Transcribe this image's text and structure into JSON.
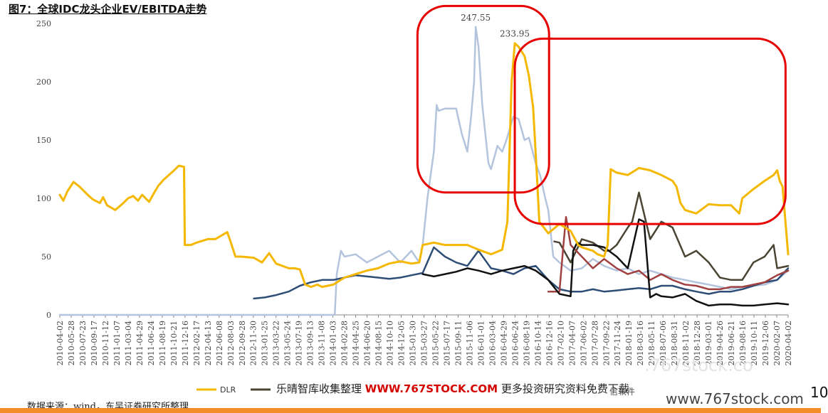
{
  "title": "图7：全球IDC龙头企业EV/EBITDA走势",
  "source": "数据来源：wind，东吴证券研究所整理",
  "watermark": {
    "main": "乐晴智库收集整理",
    "url": "WWW.767STOCK.COM",
    "tail": "更多投资研究资料免费下载",
    "suffix": "信软件",
    "right": "www.767stock.com",
    "faint": ".767stock.co"
  },
  "page_number": "10",
  "colors": {
    "DLR": "#f5b800",
    "light_blue": "#b4c4dc",
    "dark_blue": "#2e4e78",
    "olive": "#4a4433",
    "brown": "#a04040",
    "black": "#111111",
    "highlight": "#e60000"
  },
  "chart_data": {
    "type": "line",
    "title": "",
    "xlabel": "",
    "ylabel": "",
    "ylim": [
      0,
      250
    ],
    "yticks": [
      0,
      50,
      100,
      150,
      200,
      250
    ],
    "ytick_labels": [
      "0",
      "50",
      "100",
      "150",
      "200",
      "250"
    ],
    "xlim": [
      "2010-04-02",
      "2020-04-02"
    ],
    "x_tick_labels": [
      "2010-04-02",
      "2010-05-28",
      "2010-07-23",
      "2010-09-17",
      "2010-11-12",
      "2011-01-07",
      "2011-03-04",
      "2011-04-29",
      "2011-06-24",
      "2011-08-19",
      "2011-10-21",
      "2011-12-16",
      "2012-02-17",
      "2012-04-13",
      "2012-06-08",
      "2012-08-03",
      "2012-09-28",
      "2012-11-30",
      "2013-01-25",
      "2013-03-22",
      "2013-05-24",
      "2013-07-19",
      "2013-09-13",
      "2013-11-08",
      "2014-01-03",
      "2014-02-28",
      "2014-04-25",
      "2014-06-20",
      "2014-08-15",
      "2014-10-10",
      "2014-12-05",
      "2015-01-30",
      "2015-03-27",
      "2015-05-22",
      "2015-07-17",
      "2015-09-11",
      "2015-11-06",
      "2016-01-01",
      "2016-03-04",
      "2016-04-29",
      "2016-06-24",
      "2016-08-19",
      "2016-10-14",
      "2016-12-16",
      "2017-02-10",
      "2017-04-07",
      "2017-06-02",
      "2017-07-28",
      "2017-09-22",
      "2017-11-24",
      "2018-01-19",
      "2018-03-16",
      "2018-05-11",
      "2018-07-06",
      "2018-08-31",
      "2018-11-02",
      "2018-12-28",
      "2019-03-01",
      "2019-04-26",
      "2019-06-21",
      "2019-08-16",
      "2019-10-11",
      "2019-12-06",
      "2020-02-07",
      "2020-04-02"
    ],
    "annotations": [
      {
        "text": "247.55",
        "x": "2015-12-18",
        "y": 247.55
      },
      {
        "text": "233.95",
        "x": "2016-07-01",
        "y": 233.95
      }
    ],
    "highlight_boxes": [
      {
        "x": [
          "2015-03-01",
          "2016-12-20"
        ],
        "y": [
          105,
          265
        ]
      },
      {
        "x": [
          "2016-07-01",
          "2020-03-20"
        ],
        "y": [
          78,
          237
        ]
      }
    ],
    "legend_position": "bottom-left",
    "series": [
      {
        "name": "DLR",
        "x": [
          "2010-04-02",
          "2010-04-20",
          "2010-05-10",
          "2010-06-10",
          "2010-07-10",
          "2010-08-20",
          "2010-09-15",
          "2010-10-20",
          "2010-11-05",
          "2010-11-25",
          "2011-01-05",
          "2011-02-15",
          "2011-03-10",
          "2011-04-05",
          "2011-04-29",
          "2011-05-20",
          "2011-06-24",
          "2011-07-20",
          "2011-08-10",
          "2011-09-05",
          "2011-10-01",
          "2011-10-21",
          "2011-11-20",
          "2011-12-16",
          "2011-12-20",
          "2012-01-20",
          "2012-02-17",
          "2012-04-13",
          "2012-05-20",
          "2012-06-20",
          "2012-07-20",
          "2012-08-03",
          "2012-08-30",
          "2012-09-28",
          "2012-11-30",
          "2013-01-10",
          "2013-02-15",
          "2013-03-22",
          "2013-05-24",
          "2013-06-20",
          "2013-07-19",
          "2013-08-15",
          "2013-09-13",
          "2013-10-15",
          "2013-11-08",
          "2014-01-03",
          "2014-02-28",
          "2014-04-25",
          "2014-06-20",
          "2014-08-15",
          "2014-10-10",
          "2014-12-05",
          "2015-01-30",
          "2015-03-10",
          "2015-03-27",
          "2015-05-22",
          "2015-07-17",
          "2015-09-11",
          "2015-11-06",
          "2016-01-01",
          "2016-03-04",
          "2016-04-29",
          "2016-05-25",
          "2016-06-15",
          "2016-07-01",
          "2016-07-20",
          "2016-08-19",
          "2016-09-10",
          "2016-10-01",
          "2016-10-20",
          "2016-11-01",
          "2016-12-16",
          "2017-02-10",
          "2017-04-07",
          "2017-05-15",
          "2017-06-02",
          "2017-07-28",
          "2017-08-20",
          "2017-09-22",
          "2017-10-10",
          "2017-10-25",
          "2017-11-24",
          "2018-01-19",
          "2018-03-16",
          "2018-05-11",
          "2018-07-06",
          "2018-08-31",
          "2018-09-20",
          "2018-10-10",
          "2018-11-02",
          "2018-12-28",
          "2019-03-01",
          "2019-04-26",
          "2019-06-21",
          "2019-08-01",
          "2019-08-16",
          "2019-10-11",
          "2019-12-06",
          "2020-01-20",
          "2020-02-07",
          "2020-02-20",
          "2020-03-05",
          "2020-04-02"
        ],
        "values": [
          103,
          98,
          106,
          114,
          110,
          103,
          99,
          96,
          101,
          94,
          90,
          96,
          100,
          102,
          98,
          103,
          97,
          105,
          111,
          116,
          120,
          123,
          128,
          127,
          60,
          60,
          62,
          65,
          65,
          68,
          71,
          64,
          50,
          50,
          49,
          45,
          53,
          44,
          40,
          40,
          39,
          26,
          24,
          26,
          24,
          26,
          32,
          35,
          38,
          40,
          44,
          46,
          44,
          45,
          60,
          62,
          60,
          60,
          60,
          56,
          52,
          56,
          80,
          200,
          233,
          230,
          222,
          205,
          178,
          120,
          80,
          70,
          78,
          72,
          60,
          58,
          55,
          52,
          50,
          60,
          125,
          122,
          120,
          126,
          124,
          120,
          115,
          110,
          96,
          90,
          87,
          95,
          94,
          94,
          87,
          100,
          108,
          115,
          120,
          124,
          115,
          110,
          52
        ]
      },
      {
        "name": "",
        "x": [
          "2010-04-02",
          "2014-01-10",
          "2014-01-20",
          "2014-02-10",
          "2014-02-28",
          "2014-04-25",
          "2014-06-20",
          "2014-08-15",
          "2014-10-10",
          "2014-12-05",
          "2015-01-30",
          "2015-03-10",
          "2015-03-27",
          "2015-04-20",
          "2015-05-22",
          "2015-06-05",
          "2015-06-15",
          "2015-07-17",
          "2015-08-20",
          "2015-09-11",
          "2015-10-10",
          "2015-11-06",
          "2015-11-25",
          "2015-12-10",
          "2015-12-18",
          "2016-01-01",
          "2016-01-20",
          "2016-02-20",
          "2016-03-04",
          "2016-04-05",
          "2016-04-29",
          "2016-05-20",
          "2016-06-24",
          "2016-07-20",
          "2016-08-19",
          "2016-09-10",
          "2016-10-14",
          "2016-11-05",
          "2016-12-01",
          "2016-12-16",
          "2017-01-10",
          "2017-02-10",
          "2017-04-07",
          "2017-06-02",
          "2017-07-28",
          "2017-09-22",
          "2017-11-24",
          "2018-01-19",
          "2018-03-16",
          "2018-05-11",
          "2018-07-06",
          "2018-08-31",
          "2018-11-02",
          "2018-12-28",
          "2019-03-01",
          "2019-04-26",
          "2019-06-21",
          "2019-08-16",
          "2019-10-11",
          "2019-12-06",
          "2020-02-07",
          "2020-04-02"
        ],
        "values": [
          0,
          0,
          35,
          55,
          50,
          52,
          45,
          50,
          55,
          45,
          55,
          45,
          60,
          100,
          140,
          180,
          175,
          177,
          177,
          177,
          155,
          140,
          170,
          200,
          247,
          230,
          180,
          130,
          125,
          145,
          140,
          150,
          170,
          168,
          150,
          152,
          130,
          120,
          100,
          90,
          50,
          45,
          38,
          40,
          48,
          42,
          38,
          40,
          35,
          38,
          35,
          32,
          30,
          28,
          26,
          24,
          22,
          24,
          25,
          26,
          30,
          38
        ]
      },
      {
        "name": "",
        "x": [
          "2012-11-30",
          "2013-01-25",
          "2013-03-22",
          "2013-05-24",
          "2013-07-19",
          "2013-09-13",
          "2013-11-08",
          "2014-01-03",
          "2014-02-28",
          "2014-04-25",
          "2014-06-20",
          "2014-08-15",
          "2014-10-10",
          "2014-12-05",
          "2015-01-30",
          "2015-03-27",
          "2015-05-22",
          "2015-07-17",
          "2015-09-11",
          "2015-11-06",
          "2016-01-01",
          "2016-03-04",
          "2016-04-29",
          "2016-06-24",
          "2016-08-19",
          "2016-10-14",
          "2016-12-16",
          "2017-02-10",
          "2017-04-07",
          "2017-06-02",
          "2017-07-28",
          "2017-09-22",
          "2017-11-24",
          "2018-01-19",
          "2018-03-16",
          "2018-05-11",
          "2018-07-06",
          "2018-08-31",
          "2018-11-02",
          "2018-12-28",
          "2019-03-01",
          "2019-04-26",
          "2019-06-21",
          "2019-08-16",
          "2019-10-11",
          "2019-12-06",
          "2020-02-07",
          "2020-04-02"
        ],
        "values": [
          14,
          15,
          17,
          20,
          25,
          28,
          30,
          30,
          32,
          34,
          33,
          32,
          31,
          32,
          34,
          36,
          58,
          50,
          45,
          42,
          55,
          40,
          38,
          35,
          40,
          42,
          30,
          22,
          20,
          20,
          22,
          20,
          21,
          22,
          23,
          22,
          25,
          25,
          22,
          20,
          18,
          20,
          20,
          22,
          25,
          28,
          30,
          40
        ]
      },
      {
        "name": "",
        "x": [
          "2017-01-15",
          "2017-02-10",
          "2017-04-07",
          "2017-06-02",
          "2017-07-28",
          "2017-09-22",
          "2017-10-20",
          "2017-11-24",
          "2018-01-19",
          "2018-02-10",
          "2018-03-16",
          "2018-05-11",
          "2018-07-06",
          "2018-08-31",
          "2018-11-02",
          "2018-12-28",
          "2019-03-01",
          "2019-04-26",
          "2019-06-21",
          "2019-08-16",
          "2019-10-11",
          "2019-12-06",
          "2020-01-20",
          "2020-02-07",
          "2020-04-02"
        ],
        "values": [
          63,
          62,
          45,
          65,
          62,
          55,
          55,
          60,
          75,
          80,
          105,
          65,
          80,
          75,
          50,
          55,
          45,
          32,
          30,
          30,
          45,
          50,
          60,
          40,
          42
        ]
      },
      {
        "name": "",
        "x": [
          "2016-12-16",
          "2017-02-10",
          "2017-03-01",
          "2017-03-15",
          "2017-04-07",
          "2017-06-02",
          "2017-07-28",
          "2017-09-22",
          "2017-11-24",
          "2018-01-19",
          "2018-03-16",
          "2018-05-11",
          "2018-07-06",
          "2018-08-31",
          "2018-11-02",
          "2018-12-28",
          "2019-03-01",
          "2019-04-26",
          "2019-06-21",
          "2019-08-16",
          "2019-10-11",
          "2019-12-06",
          "2020-02-07",
          "2020-04-02"
        ],
        "values": [
          20,
          20,
          58,
          84,
          60,
          50,
          40,
          48,
          40,
          35,
          38,
          30,
          35,
          30,
          26,
          25,
          22,
          22,
          24,
          24,
          26,
          28,
          34,
          38
        ]
      },
      {
        "name": "",
        "x": [
          "2015-03-27",
          "2015-05-22",
          "2015-07-17",
          "2015-09-11",
          "2015-11-06",
          "2016-01-01",
          "2016-03-04",
          "2016-04-29",
          "2016-06-24",
          "2016-08-19",
          "2016-10-14",
          "2016-12-16",
          "2017-02-10",
          "2017-04-07",
          "2017-04-20",
          "2017-05-10",
          "2017-06-02",
          "2017-07-28",
          "2017-09-22",
          "2017-11-24",
          "2018-01-19",
          "2018-03-16",
          "2018-04-10",
          "2018-05-11",
          "2018-06-10",
          "2018-07-06",
          "2018-08-31",
          "2018-11-02",
          "2018-12-28",
          "2019-03-01",
          "2019-04-26",
          "2019-06-21",
          "2019-08-16",
          "2019-10-11",
          "2019-12-06",
          "2020-02-07",
          "2020-04-02"
        ],
        "values": [
          35,
          33,
          35,
          37,
          40,
          38,
          35,
          38,
          40,
          42,
          38,
          30,
          18,
          16,
          55,
          62,
          60,
          60,
          58,
          50,
          40,
          82,
          80,
          15,
          18,
          16,
          15,
          18,
          12,
          8,
          9,
          9,
          8,
          8,
          9,
          10,
          9
        ]
      }
    ]
  }
}
